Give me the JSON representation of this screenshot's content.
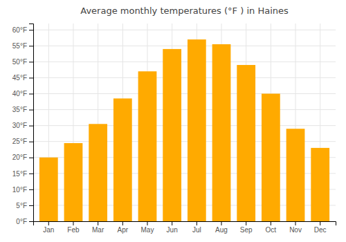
{
  "chart_data": {
    "type": "bar",
    "title": "Average monthly temperatures (°F ) in Haines",
    "categories": [
      "Jan",
      "Feb",
      "Mar",
      "Apr",
      "May",
      "Jun",
      "Jul",
      "Aug",
      "Sep",
      "Oct",
      "Nov",
      "Dec"
    ],
    "values": [
      20,
      24.5,
      30.5,
      38.5,
      47,
      54,
      57,
      55.5,
      49,
      40,
      29,
      23
    ],
    "color": "#FFAA00",
    "ylim": [
      0,
      62
    ],
    "yticks": [
      {
        "value": 0,
        "label": "0°F"
      },
      {
        "value": 5,
        "label": "5°F"
      },
      {
        "value": 10,
        "label": "10°F"
      },
      {
        "value": 15,
        "label": "15°F"
      },
      {
        "value": 20,
        "label": "20°F"
      },
      {
        "value": 25,
        "label": "25°F"
      },
      {
        "value": 30,
        "label": "30°F"
      },
      {
        "value": 35,
        "label": "35°F"
      },
      {
        "value": 40,
        "label": "40°F"
      },
      {
        "value": 45,
        "label": "45°F"
      },
      {
        "value": 50,
        "label": "50°F"
      },
      {
        "value": 55,
        "label": "55°F"
      },
      {
        "value": 60,
        "label": "60°F"
      }
    ],
    "grid": true
  }
}
